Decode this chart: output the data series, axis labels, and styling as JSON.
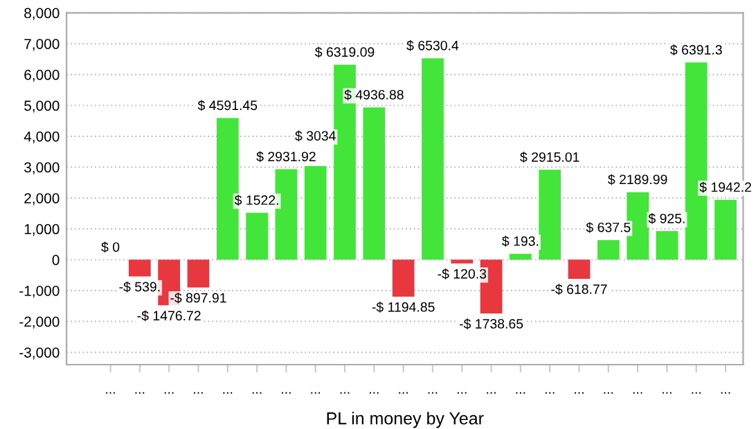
{
  "chart_data": {
    "type": "bar",
    "xlabel": "PL in money by Year",
    "categories": [
      "...",
      "...",
      "...",
      "...",
      "...",
      "...",
      "...",
      "...",
      "...",
      "...",
      "...",
      "...",
      "...",
      "...",
      "...",
      "...",
      "...",
      "...",
      "...",
      "...",
      "...",
      "..."
    ],
    "values": [
      0,
      -539,
      -1476.72,
      -897.91,
      4591.45,
      1522,
      2931.92,
      3034,
      6319.09,
      4936.88,
      -1194.85,
      6530.4,
      -120.3,
      -1738.65,
      193,
      2915.01,
      -618.77,
      637.5,
      2189.99,
      925,
      6391.3,
      1942.2
    ],
    "value_labels": [
      "$ 0",
      "-$ 539.",
      "-$ 1476.72",
      "-$ 897.91",
      "$ 4591.45",
      "$ 1522.",
      "$ 2931.92",
      "$ 3034",
      "$ 6319.09",
      "$ 4936.88",
      "-$ 1194.85",
      "$ 6530.4",
      "-$ 120.3",
      "-$ 1738.65",
      "$ 193.",
      "$ 2915.01",
      "-$ 618.77",
      "$ 637.5",
      "$ 2189.99",
      "$ 925.",
      "$ 6391.3",
      "$ 1942.2"
    ],
    "colors": [
      "#44e53a",
      "#e8373f",
      "#e8373f",
      "#e8373f",
      "#44e53a",
      "#44e53a",
      "#44e53a",
      "#44e53a",
      "#44e53a",
      "#44e53a",
      "#e8373f",
      "#44e53a",
      "#e8373f",
      "#e8373f",
      "#44e53a",
      "#44e53a",
      "#e8373f",
      "#44e53a",
      "#44e53a",
      "#44e53a",
      "#44e53a",
      "#44e53a"
    ],
    "ylim": [
      -3400,
      8000
    ],
    "yticks": [
      {
        "value": -3000,
        "label": "-3,000"
      },
      {
        "value": -2000,
        "label": "-2,000"
      },
      {
        "value": -1000,
        "label": "-1,000"
      },
      0,
      {
        "value": 1000,
        "label": "1,000"
      },
      {
        "value": 2000,
        "label": "2,000"
      },
      {
        "value": 3000,
        "label": "3,000"
      },
      {
        "value": 4000,
        "label": "4,000"
      },
      {
        "value": 5000,
        "label": "5,000"
      },
      {
        "value": 6000,
        "label": "6,000"
      },
      {
        "value": 7000,
        "label": "7,000"
      },
      {
        "value": 8000,
        "label": "8,000"
      }
    ],
    "grid": "y",
    "legend": false
  }
}
